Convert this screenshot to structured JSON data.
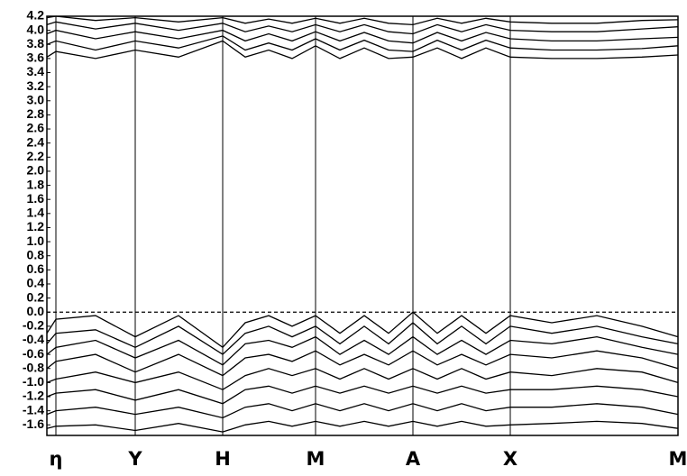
{
  "chart_data": {
    "type": "line",
    "xlim": [
      0,
      7.0
    ],
    "ylim": [
      -1.75,
      4.2
    ],
    "xticks": [
      {
        "value": 0.1,
        "label": "η"
      },
      {
        "value": 0.98,
        "label": "Y"
      },
      {
        "value": 1.95,
        "label": "H"
      },
      {
        "value": 2.98,
        "label": "M"
      },
      {
        "value": 4.06,
        "label": "A"
      },
      {
        "value": 5.14,
        "label": "X"
      },
      {
        "value": 7.0,
        "label": "M"
      }
    ],
    "yticks": [
      -1.6,
      -1.4,
      -1.2,
      {
        "value": -1.0,
        "label": "-1.0"
      },
      -0.8,
      -0.6,
      -0.4,
      -0.2,
      {
        "value": 0,
        "label": "0.0"
      },
      0.2,
      0.4,
      0.6,
      0.8,
      {
        "value": 1.0,
        "label": "1.0"
      },
      1.2,
      1.4,
      1.6,
      1.8,
      {
        "value": 2.0,
        "label": "2.0"
      },
      2.2,
      2.4,
      2.6,
      2.8,
      {
        "value": 3.0,
        "label": "3.0"
      },
      3.2,
      3.4,
      3.6,
      3.8,
      {
        "value": 4.0,
        "label": "4.0"
      },
      4.2
    ],
    "reference_line": 0,
    "x": [
      0,
      0.1,
      0.54,
      0.98,
      1.46,
      1.95,
      2.2,
      2.46,
      2.72,
      2.98,
      3.25,
      3.52,
      3.79,
      4.06,
      4.33,
      4.6,
      4.87,
      5.14,
      5.6,
      6.1,
      6.6,
      7.0
    ],
    "series": [
      {
        "color": "#000000",
        "values": [
          3.62,
          3.7,
          3.6,
          3.72,
          3.62,
          3.85,
          3.62,
          3.72,
          3.6,
          3.78,
          3.6,
          3.75,
          3.6,
          3.62,
          3.75,
          3.6,
          3.75,
          3.62,
          3.6,
          3.6,
          3.62,
          3.65
        ]
      },
      {
        "color": "#000000",
        "values": [
          3.8,
          3.85,
          3.72,
          3.85,
          3.75,
          3.92,
          3.72,
          3.82,
          3.72,
          3.88,
          3.72,
          3.86,
          3.72,
          3.7,
          3.86,
          3.72,
          3.86,
          3.75,
          3.72,
          3.72,
          3.74,
          3.78
        ]
      },
      {
        "color": "#000000",
        "values": [
          3.95,
          4.0,
          3.88,
          3.98,
          3.88,
          4.0,
          3.85,
          3.95,
          3.85,
          3.98,
          3.85,
          3.97,
          3.85,
          3.82,
          3.97,
          3.85,
          3.97,
          3.88,
          3.85,
          3.85,
          3.88,
          3.9
        ]
      },
      {
        "color": "#000000",
        "values": [
          4.08,
          4.12,
          4.02,
          4.1,
          4.0,
          4.1,
          3.98,
          4.06,
          3.98,
          4.08,
          3.98,
          4.08,
          3.98,
          3.95,
          4.08,
          3.98,
          4.08,
          4.0,
          3.98,
          3.98,
          4.02,
          4.05
        ]
      },
      {
        "color": "#000000",
        "values": [
          4.18,
          4.2,
          4.14,
          4.18,
          4.12,
          4.18,
          4.1,
          4.16,
          4.1,
          4.17,
          4.1,
          4.17,
          4.1,
          4.08,
          4.17,
          4.1,
          4.17,
          4.12,
          4.1,
          4.1,
          4.14,
          4.15
        ]
      },
      {
        "color": "#000000",
        "values": [
          -0.3,
          -0.1,
          -0.05,
          -0.35,
          -0.05,
          -0.5,
          -0.15,
          -0.05,
          -0.2,
          -0.05,
          -0.3,
          -0.05,
          -0.3,
          0.0,
          -0.3,
          -0.05,
          -0.3,
          -0.05,
          -0.15,
          -0.05,
          -0.2,
          -0.35
        ]
      },
      {
        "color": "#000000",
        "values": [
          -0.45,
          -0.3,
          -0.25,
          -0.5,
          -0.2,
          -0.6,
          -0.3,
          -0.2,
          -0.35,
          -0.2,
          -0.45,
          -0.2,
          -0.45,
          -0.15,
          -0.45,
          -0.2,
          -0.45,
          -0.2,
          -0.3,
          -0.2,
          -0.35,
          -0.45
        ]
      },
      {
        "color": "#000000",
        "values": [
          -0.6,
          -0.5,
          -0.4,
          -0.65,
          -0.4,
          -0.75,
          -0.45,
          -0.4,
          -0.5,
          -0.35,
          -0.6,
          -0.4,
          -0.6,
          -0.35,
          -0.6,
          -0.4,
          -0.6,
          -0.4,
          -0.45,
          -0.35,
          -0.5,
          -0.6
        ]
      },
      {
        "color": "#000000",
        "values": [
          -0.8,
          -0.7,
          -0.6,
          -0.85,
          -0.6,
          -0.9,
          -0.65,
          -0.6,
          -0.7,
          -0.55,
          -0.75,
          -0.6,
          -0.75,
          -0.55,
          -0.75,
          -0.6,
          -0.75,
          -0.6,
          -0.65,
          -0.55,
          -0.65,
          -0.8
        ]
      },
      {
        "color": "#000000",
        "values": [
          -1.0,
          -0.95,
          -0.85,
          -1.0,
          -0.85,
          -1.1,
          -0.9,
          -0.8,
          -0.9,
          -0.8,
          -0.95,
          -0.8,
          -0.95,
          -0.8,
          -0.95,
          -0.8,
          -0.95,
          -0.85,
          -0.9,
          -0.8,
          -0.85,
          -1.0
        ]
      },
      {
        "color": "#000000",
        "values": [
          -1.2,
          -1.15,
          -1.1,
          -1.25,
          -1.1,
          -1.3,
          -1.1,
          -1.05,
          -1.15,
          -1.05,
          -1.15,
          -1.05,
          -1.15,
          -1.05,
          -1.15,
          -1.05,
          -1.15,
          -1.1,
          -1.1,
          -1.05,
          -1.1,
          -1.2
        ]
      },
      {
        "color": "#000000",
        "values": [
          -1.45,
          -1.4,
          -1.35,
          -1.45,
          -1.35,
          -1.5,
          -1.35,
          -1.3,
          -1.4,
          -1.3,
          -1.4,
          -1.3,
          -1.4,
          -1.3,
          -1.4,
          -1.3,
          -1.4,
          -1.35,
          -1.35,
          -1.3,
          -1.35,
          -1.45
        ]
      },
      {
        "color": "#000000",
        "values": [
          -1.65,
          -1.62,
          -1.6,
          -1.68,
          -1.58,
          -1.7,
          -1.6,
          -1.55,
          -1.62,
          -1.55,
          -1.62,
          -1.55,
          -1.62,
          -1.55,
          -1.62,
          -1.55,
          -1.62,
          -1.6,
          -1.58,
          -1.55,
          -1.58,
          -1.65
        ]
      }
    ]
  }
}
